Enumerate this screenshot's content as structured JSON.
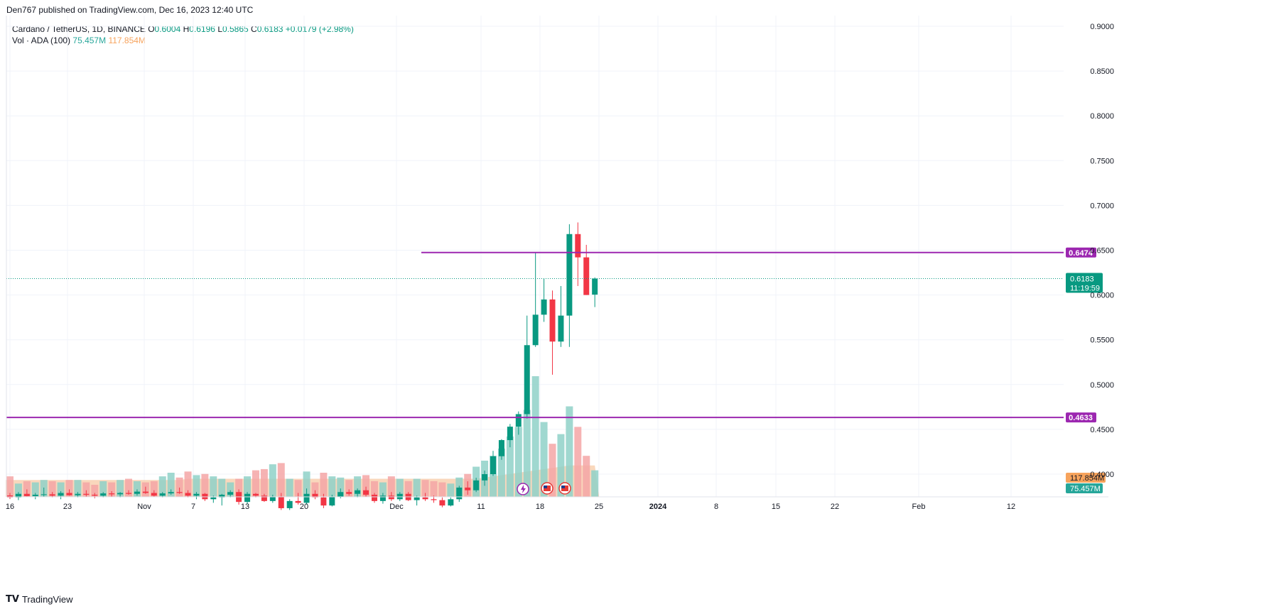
{
  "header": {
    "published": "Den767 published on TradingView.com, Dec 16, 2023 12:40 UTC"
  },
  "legend": {
    "symbol": "Cardano / TetherUS, 1D, BINANCE",
    "o_label": "O",
    "o_value": "0.6004",
    "h_label": "H",
    "h_value": "0.6196",
    "l_label": "L",
    "l_value": "0.5865",
    "c_label": "C",
    "c_value": "0.6183",
    "change": "+0.0179 (+2.98%)",
    "vol_label": "Vol · ADA (100)",
    "vol_value": "75.457M",
    "vol_ma_value": "117.854M"
  },
  "footer": {
    "brand": "TradingView",
    "logo_text": "𝗧𝗩"
  },
  "colors": {
    "up": "#089981",
    "down": "#f23645",
    "level": "#9c27b0",
    "vol_up": "#8fd1c8",
    "vol_down": "#f5a6a6",
    "vol_ma_fill": "#f7c9a6"
  },
  "chart_data": {
    "type": "candlestick",
    "symbol": "Cardano / TetherUS, 1D, BINANCE",
    "y_axis": {
      "ticks": [
        "0.9000",
        "0.8500",
        "0.8000",
        "0.7500",
        "0.7000",
        "0.6500",
        "0.6000",
        "0.5500",
        "0.5000",
        "0.4500",
        "0.4000"
      ]
    },
    "x_axis": {
      "ticks": [
        "16",
        "23",
        "Nov",
        "7",
        "13",
        "20",
        "Dec",
        "11",
        "18",
        "25",
        "2024",
        "8",
        "15",
        "22",
        "Feb",
        "12"
      ]
    },
    "horizontal_levels": [
      {
        "value": 0.6474,
        "label": "0.6474"
      },
      {
        "value": 0.4633,
        "label": "0.4633"
      }
    ],
    "last_price": {
      "value": 0.6183,
      "label": "0.6183",
      "countdown": "11:19:59"
    },
    "volume_labels": {
      "ma": "117.854M",
      "volume": "75.457M"
    },
    "candles": [
      {
        "o": 0.3762,
        "h": 0.379,
        "l": 0.3722,
        "c": 0.374
      },
      {
        "o": 0.374,
        "h": 0.38,
        "l": 0.371,
        "c": 0.378
      },
      {
        "o": 0.378,
        "h": 0.383,
        "l": 0.3752,
        "c": 0.3755
      },
      {
        "o": 0.3755,
        "h": 0.379,
        "l": 0.372,
        "c": 0.377
      },
      {
        "o": 0.377,
        "h": 0.385,
        "l": 0.375,
        "c": 0.3775
      },
      {
        "o": 0.3775,
        "h": 0.38,
        "l": 0.374,
        "c": 0.376
      },
      {
        "o": 0.376,
        "h": 0.381,
        "l": 0.372,
        "c": 0.379
      },
      {
        "o": 0.379,
        "h": 0.383,
        "l": 0.376,
        "c": 0.3765
      },
      {
        "o": 0.3765,
        "h": 0.38,
        "l": 0.374,
        "c": 0.378
      },
      {
        "o": 0.378,
        "h": 0.382,
        "l": 0.375,
        "c": 0.377
      },
      {
        "o": 0.377,
        "h": 0.379,
        "l": 0.373,
        "c": 0.376
      },
      {
        "o": 0.376,
        "h": 0.38,
        "l": 0.374,
        "c": 0.3785
      },
      {
        "o": 0.3785,
        "h": 0.381,
        "l": 0.375,
        "c": 0.3775
      },
      {
        "o": 0.3775,
        "h": 0.38,
        "l": 0.374,
        "c": 0.379
      },
      {
        "o": 0.379,
        "h": 0.382,
        "l": 0.377,
        "c": 0.378
      },
      {
        "o": 0.378,
        "h": 0.383,
        "l": 0.376,
        "c": 0.3805
      },
      {
        "o": 0.3805,
        "h": 0.386,
        "l": 0.378,
        "c": 0.379
      },
      {
        "o": 0.379,
        "h": 0.382,
        "l": 0.375,
        "c": 0.376
      },
      {
        "o": 0.376,
        "h": 0.38,
        "l": 0.374,
        "c": 0.3785
      },
      {
        "o": 0.3785,
        "h": 0.383,
        "l": 0.377,
        "c": 0.38
      },
      {
        "o": 0.38,
        "h": 0.385,
        "l": 0.378,
        "c": 0.379
      },
      {
        "o": 0.379,
        "h": 0.382,
        "l": 0.374,
        "c": 0.376
      },
      {
        "o": 0.376,
        "h": 0.38,
        "l": 0.372,
        "c": 0.378
      },
      {
        "o": 0.378,
        "h": 0.379,
        "l": 0.37,
        "c": 0.372
      },
      {
        "o": 0.372,
        "h": 0.376,
        "l": 0.368,
        "c": 0.374
      },
      {
        "o": 0.374,
        "h": 0.378,
        "l": 0.365,
        "c": 0.377
      },
      {
        "o": 0.377,
        "h": 0.382,
        "l": 0.374,
        "c": 0.38
      },
      {
        "o": 0.38,
        "h": 0.383,
        "l": 0.366,
        "c": 0.369
      },
      {
        "o": 0.369,
        "h": 0.38,
        "l": 0.367,
        "c": 0.378
      },
      {
        "o": 0.378,
        "h": 0.379,
        "l": 0.374,
        "c": 0.376
      },
      {
        "o": 0.376,
        "h": 0.378,
        "l": 0.369,
        "c": 0.37
      },
      {
        "o": 0.37,
        "h": 0.377,
        "l": 0.368,
        "c": 0.375
      },
      {
        "o": 0.375,
        "h": 0.379,
        "l": 0.36,
        "c": 0.362
      },
      {
        "o": 0.362,
        "h": 0.372,
        "l": 0.36,
        "c": 0.37
      },
      {
        "o": 0.37,
        "h": 0.379,
        "l": 0.366,
        "c": 0.368
      },
      {
        "o": 0.368,
        "h": 0.384,
        "l": 0.366,
        "c": 0.378
      },
      {
        "o": 0.378,
        "h": 0.382,
        "l": 0.372,
        "c": 0.374
      },
      {
        "o": 0.374,
        "h": 0.378,
        "l": 0.362,
        "c": 0.365
      },
      {
        "o": 0.365,
        "h": 0.377,
        "l": 0.364,
        "c": 0.375
      },
      {
        "o": 0.375,
        "h": 0.384,
        "l": 0.373,
        "c": 0.38
      },
      {
        "o": 0.38,
        "h": 0.383,
        "l": 0.376,
        "c": 0.378
      },
      {
        "o": 0.378,
        "h": 0.384,
        "l": 0.374,
        "c": 0.382
      },
      {
        "o": 0.382,
        "h": 0.386,
        "l": 0.375,
        "c": 0.377
      },
      {
        "o": 0.377,
        "h": 0.379,
        "l": 0.368,
        "c": 0.37
      },
      {
        "o": 0.37,
        "h": 0.379,
        "l": 0.367,
        "c": 0.376
      },
      {
        "o": 0.376,
        "h": 0.38,
        "l": 0.37,
        "c": 0.372
      },
      {
        "o": 0.372,
        "h": 0.38,
        "l": 0.37,
        "c": 0.378
      },
      {
        "o": 0.378,
        "h": 0.38,
        "l": 0.37,
        "c": 0.371
      },
      {
        "o": 0.371,
        "h": 0.376,
        "l": 0.365,
        "c": 0.374
      },
      {
        "o": 0.374,
        "h": 0.379,
        "l": 0.37,
        "c": 0.372
      },
      {
        "o": 0.372,
        "h": 0.376,
        "l": 0.368,
        "c": 0.371
      },
      {
        "o": 0.371,
        "h": 0.374,
        "l": 0.363,
        "c": 0.365
      },
      {
        "o": 0.365,
        "h": 0.374,
        "l": 0.364,
        "c": 0.372
      },
      {
        "o": 0.372,
        "h": 0.387,
        "l": 0.369,
        "c": 0.385
      },
      {
        "o": 0.385,
        "h": 0.392,
        "l": 0.377,
        "c": 0.382
      },
      {
        "o": 0.382,
        "h": 0.396,
        "l": 0.38,
        "c": 0.393
      },
      {
        "o": 0.393,
        "h": 0.404,
        "l": 0.387,
        "c": 0.4
      },
      {
        "o": 0.4,
        "h": 0.426,
        "l": 0.398,
        "c": 0.42
      },
      {
        "o": 0.42,
        "h": 0.439,
        "l": 0.416,
        "c": 0.438
      },
      {
        "o": 0.438,
        "h": 0.456,
        "l": 0.43,
        "c": 0.453
      },
      {
        "o": 0.453,
        "h": 0.47,
        "l": 0.444,
        "c": 0.467
      },
      {
        "o": 0.467,
        "h": 0.577,
        "l": 0.462,
        "c": 0.544
      },
      {
        "o": 0.544,
        "h": 0.647,
        "l": 0.542,
        "c": 0.578
      },
      {
        "o": 0.578,
        "h": 0.618,
        "l": 0.57,
        "c": 0.595
      },
      {
        "o": 0.595,
        "h": 0.605,
        "l": 0.511,
        "c": 0.548
      },
      {
        "o": 0.548,
        "h": 0.61,
        "l": 0.542,
        "c": 0.577
      },
      {
        "o": 0.577,
        "h": 0.679,
        "l": 0.542,
        "c": 0.668
      },
      {
        "o": 0.668,
        "h": 0.681,
        "l": 0.61,
        "c": 0.642
      },
      {
        "o": 0.642,
        "h": 0.656,
        "l": 0.6,
        "c": 0.6
      },
      {
        "o": 0.6004,
        "h": 0.6196,
        "l": 0.5865,
        "c": 0.6183
      }
    ],
    "volume_scale_max": 100,
    "volumes": [
      17,
      11,
      13,
      12,
      14,
      13,
      12,
      14,
      14,
      12,
      10,
      13,
      12,
      14,
      15,
      13,
      12,
      13,
      17,
      20,
      16,
      21,
      18,
      19,
      17,
      15,
      12,
      15,
      17,
      22,
      23,
      27,
      28,
      15,
      14,
      21,
      12,
      20,
      17,
      16,
      14,
      17,
      18,
      13,
      12,
      17,
      15,
      13,
      15,
      14,
      13,
      12,
      11,
      16,
      19,
      25,
      30,
      34,
      40,
      50,
      58,
      72,
      100,
      62,
      44,
      52,
      75,
      58,
      34,
      22
    ],
    "volume_ma": [
      14,
      14,
      14,
      14,
      14,
      14,
      14,
      14,
      14,
      14,
      14,
      14,
      14,
      14,
      14,
      14,
      14,
      14,
      14,
      14,
      14,
      15,
      15,
      15,
      15,
      15,
      15,
      15,
      15,
      15,
      15,
      15,
      15,
      15,
      15,
      15,
      15,
      15,
      15,
      15,
      15,
      15,
      15,
      15,
      15,
      15,
      15,
      15,
      15,
      15,
      15,
      15,
      15,
      15,
      15,
      15,
      16,
      17,
      18,
      19,
      20,
      21,
      22,
      23,
      24,
      25,
      26,
      26,
      26,
      26
    ]
  }
}
